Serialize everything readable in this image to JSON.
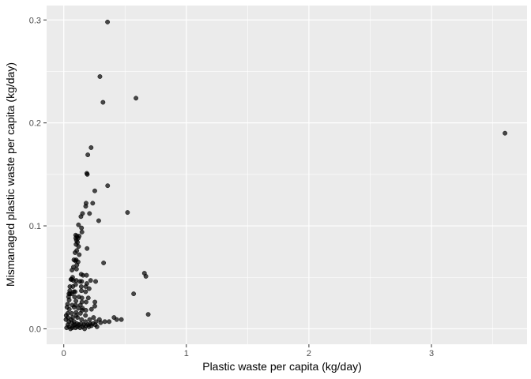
{
  "chart_data": {
    "type": "scatter",
    "title": "",
    "xlabel": "Plastic waste per capita (kg/day)",
    "ylabel": "Mismanaged plastic waste per capita (kg/day)",
    "xlim": [
      -0.14,
      3.78
    ],
    "ylim": [
      -0.015,
      0.314
    ],
    "x_ticks": [
      0,
      1,
      2,
      3
    ],
    "x_tick_labels": [
      "0",
      "1",
      "2",
      "3"
    ],
    "y_ticks": [
      0.0,
      0.1,
      0.2,
      0.3
    ],
    "y_tick_labels": [
      "0.0",
      "0.1",
      "0.2",
      "0.3"
    ],
    "grid": true,
    "legend": "none",
    "colors": {
      "panel": "#ebebeb",
      "grid": "#ffffff",
      "point": "#000000"
    },
    "point_alpha": 0.7,
    "points": [
      [
        0.357,
        0.298
      ],
      [
        0.295,
        0.245
      ],
      [
        0.589,
        0.224
      ],
      [
        0.32,
        0.22
      ],
      [
        3.6,
        0.19
      ],
      [
        0.223,
        0.176
      ],
      [
        0.196,
        0.169
      ],
      [
        0.188,
        0.151
      ],
      [
        0.192,
        0.15
      ],
      [
        0.358,
        0.139
      ],
      [
        0.253,
        0.134
      ],
      [
        0.182,
        0.122
      ],
      [
        0.179,
        0.119
      ],
      [
        0.236,
        0.122
      ],
      [
        0.153,
        0.112
      ],
      [
        0.21,
        0.112
      ],
      [
        0.52,
        0.113
      ],
      [
        0.14,
        0.109
      ],
      [
        0.285,
        0.105
      ],
      [
        0.12,
        0.101
      ],
      [
        0.145,
        0.098
      ],
      [
        0.148,
        0.094
      ],
      [
        0.097,
        0.091
      ],
      [
        0.107,
        0.09
      ],
      [
        0.125,
        0.09
      ],
      [
        0.098,
        0.088
      ],
      [
        0.118,
        0.088
      ],
      [
        0.103,
        0.086
      ],
      [
        0.112,
        0.084
      ],
      [
        0.1,
        0.082
      ],
      [
        0.121,
        0.08
      ],
      [
        0.19,
        0.078
      ],
      [
        0.106,
        0.076
      ],
      [
        0.092,
        0.074
      ],
      [
        0.126,
        0.072
      ],
      [
        0.083,
        0.067
      ],
      [
        0.101,
        0.067
      ],
      [
        0.095,
        0.066
      ],
      [
        0.117,
        0.065
      ],
      [
        0.325,
        0.064
      ],
      [
        0.107,
        0.062
      ],
      [
        0.079,
        0.06
      ],
      [
        0.067,
        0.057
      ],
      [
        0.104,
        0.058
      ],
      [
        0.658,
        0.054
      ],
      [
        0.67,
        0.051
      ],
      [
        0.142,
        0.053
      ],
      [
        0.157,
        0.052
      ],
      [
        0.186,
        0.052
      ],
      [
        0.072,
        0.05
      ],
      [
        0.058,
        0.048
      ],
      [
        0.064,
        0.048
      ],
      [
        0.078,
        0.047
      ],
      [
        0.102,
        0.047
      ],
      [
        0.131,
        0.046
      ],
      [
        0.146,
        0.046
      ],
      [
        0.219,
        0.047
      ],
      [
        0.26,
        0.046
      ],
      [
        0.188,
        0.044
      ],
      [
        0.05,
        0.041
      ],
      [
        0.074,
        0.041
      ],
      [
        0.097,
        0.043
      ],
      [
        0.143,
        0.041
      ],
      [
        0.18,
        0.041
      ],
      [
        0.207,
        0.039
      ],
      [
        0.049,
        0.037
      ],
      [
        0.082,
        0.036
      ],
      [
        0.092,
        0.036
      ],
      [
        0.144,
        0.037
      ],
      [
        0.178,
        0.036
      ],
      [
        0.042,
        0.034
      ],
      [
        0.05,
        0.034
      ],
      [
        0.064,
        0.034
      ],
      [
        0.57,
        0.034
      ],
      [
        0.039,
        0.031
      ],
      [
        0.088,
        0.031
      ],
      [
        0.123,
        0.031
      ],
      [
        0.148,
        0.03
      ],
      [
        0.2,
        0.03
      ],
      [
        0.044,
        0.028
      ],
      [
        0.099,
        0.027
      ],
      [
        0.148,
        0.026
      ],
      [
        0.182,
        0.026
      ],
      [
        0.254,
        0.026
      ],
      [
        0.031,
        0.024
      ],
      [
        0.069,
        0.023
      ],
      [
        0.097,
        0.023
      ],
      [
        0.135,
        0.023
      ],
      [
        0.253,
        0.022
      ],
      [
        0.026,
        0.021
      ],
      [
        0.085,
        0.021
      ],
      [
        0.119,
        0.02
      ],
      [
        0.153,
        0.02
      ],
      [
        0.045,
        0.019
      ],
      [
        0.15,
        0.018
      ],
      [
        0.18,
        0.018
      ],
      [
        0.226,
        0.019
      ],
      [
        0.1,
        0.016
      ],
      [
        0.032,
        0.015
      ],
      [
        0.064,
        0.015
      ],
      [
        0.136,
        0.015
      ],
      [
        0.689,
        0.014
      ],
      [
        0.02,
        0.013
      ],
      [
        0.102,
        0.013
      ],
      [
        0.177,
        0.013
      ],
      [
        0.033,
        0.011
      ],
      [
        0.073,
        0.011
      ],
      [
        0.112,
        0.011
      ],
      [
        0.243,
        0.011
      ],
      [
        0.41,
        0.011
      ],
      [
        0.018,
        0.009
      ],
      [
        0.058,
        0.009
      ],
      [
        0.145,
        0.009
      ],
      [
        0.211,
        0.009
      ],
      [
        0.291,
        0.009
      ],
      [
        0.432,
        0.009
      ],
      [
        0.47,
        0.009
      ],
      [
        0.041,
        0.007
      ],
      [
        0.084,
        0.007
      ],
      [
        0.177,
        0.007
      ],
      [
        0.262,
        0.007
      ],
      [
        0.335,
        0.007
      ],
      [
        0.37,
        0.007
      ],
      [
        0.065,
        0.006
      ],
      [
        0.108,
        0.005
      ],
      [
        0.141,
        0.005
      ],
      [
        0.215,
        0.005
      ],
      [
        0.235,
        0.005
      ],
      [
        0.301,
        0.006
      ],
      [
        0.033,
        0.004
      ],
      [
        0.088,
        0.004
      ],
      [
        0.121,
        0.004
      ],
      [
        0.163,
        0.004
      ],
      [
        0.197,
        0.004
      ],
      [
        0.257,
        0.004
      ],
      [
        0.076,
        0.003
      ],
      [
        0.182,
        0.003
      ],
      [
        0.225,
        0.003
      ],
      [
        0.043,
        0.002
      ],
      [
        0.112,
        0.002
      ],
      [
        0.152,
        0.002
      ],
      [
        0.205,
        0.002
      ],
      [
        0.271,
        0.002
      ],
      [
        0.023,
        0.001
      ],
      [
        0.07,
        0.001
      ],
      [
        0.096,
        0.001
      ],
      [
        0.133,
        0.001
      ],
      [
        0.055,
        0.0
      ],
      [
        0.17,
        0.0
      ]
    ]
  }
}
